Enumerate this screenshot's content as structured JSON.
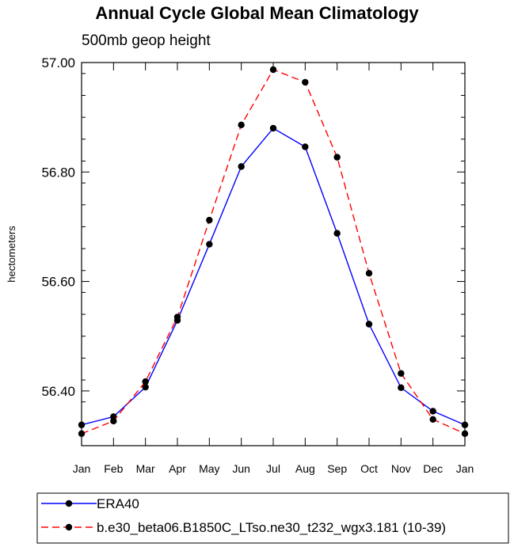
{
  "chart_data": {
    "type": "line",
    "title": "Annual Cycle Global Mean Climatology",
    "subtitle": "500mb geop height",
    "xlabel": "",
    "ylabel": "hectometers",
    "categories": [
      "Jan",
      "Feb",
      "Mar",
      "Apr",
      "May",
      "Jun",
      "Jul",
      "Aug",
      "Sep",
      "Oct",
      "Nov",
      "Dec",
      "Jan"
    ],
    "ylim": [
      56.3,
      57.0
    ],
    "yticks": [
      56.4,
      56.6,
      56.8,
      57.0
    ],
    "ytick_labels": [
      "56.40",
      "56.60",
      "56.80",
      "57.00"
    ],
    "grid": false,
    "legend_position": "bottom",
    "series": [
      {
        "name": "ERA40",
        "color": "#0000ff",
        "dash": "solid",
        "marker": "circle",
        "values": [
          56.338,
          56.353,
          56.407,
          56.529,
          56.668,
          56.81,
          56.88,
          56.846,
          56.688,
          56.522,
          56.406,
          56.363,
          56.338
        ]
      },
      {
        "name": "b.e30_beta06.B1850C_LTso.ne30_t232_wgx3.181 (10-39)",
        "color": "#ff0000",
        "dash": "dashed",
        "marker": "circle",
        "values": [
          56.322,
          56.345,
          56.417,
          56.535,
          56.712,
          56.886,
          56.987,
          56.964,
          56.827,
          56.615,
          56.432,
          56.348,
          56.322
        ]
      }
    ]
  }
}
